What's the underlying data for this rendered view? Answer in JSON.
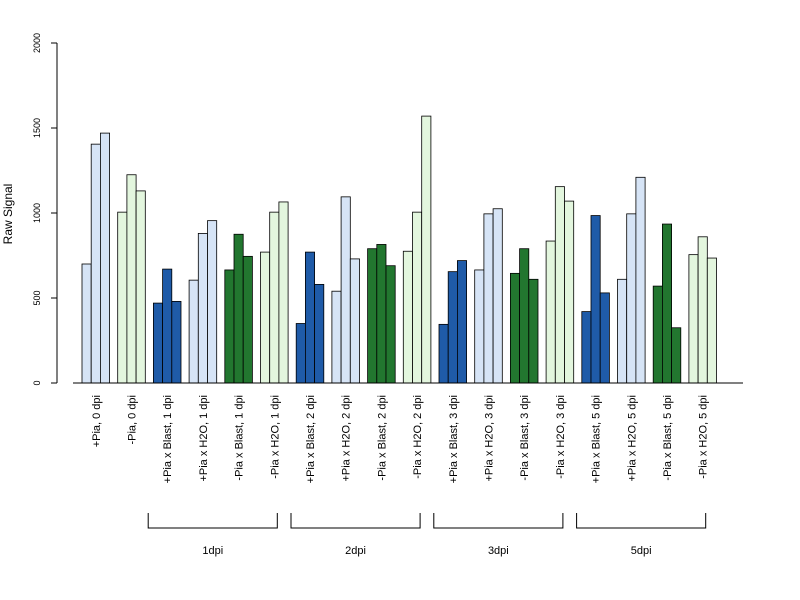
{
  "chart_data": {
    "type": "bar",
    "ylabel": "Raw Signal",
    "ylim": [
      0,
      2000
    ],
    "yticks": [
      "0",
      "500",
      "1000",
      "1500",
      "2000"
    ],
    "colors": {
      "light_blue": "#d6e4f6",
      "dark_blue": "#1f5ba8",
      "light_green": "#e3f6de",
      "dark_green": "#22762f"
    },
    "groups": [
      {
        "label": "+Pia, 0 dpi",
        "color": "light_blue",
        "values": [
          700,
          1405,
          1470
        ]
      },
      {
        "label": "-Pia, 0 dpi",
        "color": "light_green",
        "values": [
          1005,
          1225,
          1130
        ]
      },
      {
        "label": "+Pia x Blast, 1 dpi",
        "color": "dark_blue",
        "values": [
          470,
          670,
          480
        ]
      },
      {
        "label": "+Pia x H2O, 1 dpi",
        "color": "light_blue",
        "values": [
          605,
          880,
          955
        ]
      },
      {
        "label": "-Pia x Blast, 1 dpi",
        "color": "dark_green",
        "values": [
          665,
          875,
          745
        ]
      },
      {
        "label": "-Pia x H2O, 1 dpi",
        "color": "light_green",
        "values": [
          770,
          1005,
          1065
        ]
      },
      {
        "label": "+Pia x Blast, 2 dpi",
        "color": "dark_blue",
        "values": [
          350,
          770,
          580
        ]
      },
      {
        "label": "+Pia x H2O, 2 dpi",
        "color": "light_blue",
        "values": [
          540,
          1095,
          730
        ]
      },
      {
        "label": "-Pia x Blast, 2 dpi",
        "color": "dark_green",
        "values": [
          790,
          815,
          690
        ]
      },
      {
        "label": "-Pia x H2O, 2 dpi",
        "color": "light_green",
        "values": [
          775,
          1005,
          1570
        ]
      },
      {
        "label": "+Pia x Blast, 3 dpi",
        "color": "dark_blue",
        "values": [
          345,
          655,
          720
        ]
      },
      {
        "label": "+Pia x H2O, 3 dpi",
        "color": "light_blue",
        "values": [
          665,
          995,
          1025
        ]
      },
      {
        "label": "-Pia x Blast, 3 dpi",
        "color": "dark_green",
        "values": [
          645,
          790,
          610
        ]
      },
      {
        "label": "-Pia x H2O, 3 dpi",
        "color": "light_green",
        "values": [
          835,
          1155,
          1070
        ]
      },
      {
        "label": "+Pia x Blast, 5 dpi",
        "color": "dark_blue",
        "values": [
          420,
          985,
          530
        ]
      },
      {
        "label": "+Pia x H2O, 5 dpi",
        "color": "light_blue",
        "values": [
          610,
          995,
          1210
        ]
      },
      {
        "label": "-Pia x Blast, 5 dpi",
        "color": "dark_green",
        "values": [
          570,
          935,
          325
        ]
      },
      {
        "label": "-Pia x H2O, 5 dpi",
        "color": "light_green",
        "values": [
          755,
          860,
          735
        ]
      }
    ],
    "brackets": [
      {
        "label": "1dpi",
        "from_group": 2,
        "to_group": 5
      },
      {
        "label": "2dpi",
        "from_group": 6,
        "to_group": 9
      },
      {
        "label": "3dpi",
        "from_group": 10,
        "to_group": 13
      },
      {
        "label": "5dpi",
        "from_group": 14,
        "to_group": 17
      }
    ]
  }
}
